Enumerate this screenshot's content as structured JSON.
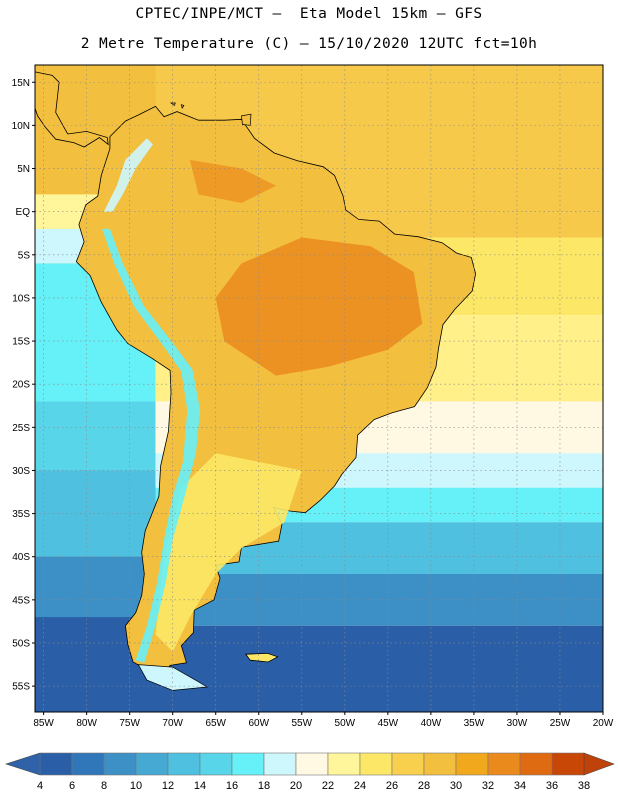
{
  "header": {
    "title_line1": "CPTEC/INPE/MCT –  Eta Model 15km – GFS",
    "title_line2": "2 Metre Temperature (C) – 15/10/2020 12UTC fct=10h"
  },
  "map": {
    "lon_range": [
      -86,
      -20
    ],
    "lat_range": [
      -58,
      17
    ],
    "lat_ticks": [
      {
        "value": 15,
        "label": "15N"
      },
      {
        "value": 10,
        "label": "10N"
      },
      {
        "value": 5,
        "label": "5N"
      },
      {
        "value": 0,
        "label": "EQ"
      },
      {
        "value": -5,
        "label": "5S"
      },
      {
        "value": -10,
        "label": "10S"
      },
      {
        "value": -15,
        "label": "15S"
      },
      {
        "value": -20,
        "label": "20S"
      },
      {
        "value": -25,
        "label": "25S"
      },
      {
        "value": -30,
        "label": "30S"
      },
      {
        "value": -35,
        "label": "35S"
      },
      {
        "value": -40,
        "label": "40S"
      },
      {
        "value": -45,
        "label": "45S"
      },
      {
        "value": -50,
        "label": "50S"
      },
      {
        "value": -55,
        "label": "55S"
      }
    ],
    "lon_ticks": [
      {
        "value": -85,
        "label": "85W"
      },
      {
        "value": -80,
        "label": "80W"
      },
      {
        "value": -75,
        "label": "75W"
      },
      {
        "value": -70,
        "label": "70W"
      },
      {
        "value": -65,
        "label": "65W"
      },
      {
        "value": -60,
        "label": "60W"
      },
      {
        "value": -55,
        "label": "55W"
      },
      {
        "value": -50,
        "label": "50W"
      },
      {
        "value": -45,
        "label": "45W"
      },
      {
        "value": -40,
        "label": "40W"
      },
      {
        "value": -35,
        "label": "35W"
      },
      {
        "value": -30,
        "label": "30W"
      },
      {
        "value": -25,
        "label": "25W"
      },
      {
        "value": -20,
        "label": "20W"
      }
    ]
  },
  "legend": {
    "labels": [
      "4",
      "6",
      "8",
      "10",
      "12",
      "14",
      "16",
      "18",
      "20",
      "22",
      "24",
      "26",
      "28",
      "30",
      "32",
      "34",
      "36",
      "38"
    ],
    "colors": [
      "#2a5fa8",
      "#2f77b8",
      "#3c90c6",
      "#46a9d3",
      "#4fc0df",
      "#58d5e8",
      "#66f0f8",
      "#cdf7fd",
      "#fff8e3",
      "#fff59a",
      "#fce866",
      "#f8d04e",
      "#f3bf3e",
      "#f1a81c",
      "#ea8a1d",
      "#de6a12",
      "#c84606"
    ],
    "low_color": "#2f62a8",
    "high_color": "#c0420b"
  },
  "fields": {
    "ocean_bands": [
      {
        "lat_max": 17,
        "lat_min": -3,
        "color": "#f6c94a"
      },
      {
        "lat_max": -3,
        "lat_min": -12,
        "color": "#fce866"
      },
      {
        "lat_max": -12,
        "lat_min": -22,
        "color": "#fff08a"
      },
      {
        "lat_max": -22,
        "lat_min": -28,
        "color": "#fff8e3"
      },
      {
        "lat_max": -28,
        "lat_min": -32,
        "color": "#cdf7fd"
      },
      {
        "lat_max": -32,
        "lat_min": -36,
        "color": "#66f0f8"
      },
      {
        "lat_max": -36,
        "lat_min": -42,
        "color": "#4fc0df"
      },
      {
        "lat_max": -42,
        "lat_min": -48,
        "color": "#3c90c6"
      },
      {
        "lat_max": -48,
        "lat_min": -58,
        "color": "#2a5fa8"
      }
    ],
    "pacific_bands": [
      {
        "lat_max": 17,
        "lat_min": 2,
        "color": "#f3bf3e"
      },
      {
        "lat_max": 2,
        "lat_min": -2,
        "color": "#fff59a"
      },
      {
        "lat_max": -2,
        "lat_min": -6,
        "color": "#cdf7fd"
      },
      {
        "lat_max": -6,
        "lat_min": -22,
        "color": "#66f0f8"
      },
      {
        "lat_max": -22,
        "lat_min": -30,
        "color": "#58d5e8"
      },
      {
        "lat_max": -30,
        "lat_min": -40,
        "color": "#4fc0df"
      },
      {
        "lat_max": -40,
        "lat_min": -47,
        "color": "#3c90c6"
      },
      {
        "lat_max": -47,
        "lat_min": -58,
        "color": "#2a5fa8"
      }
    ],
    "land_color": "#f3bf3e",
    "hot_color": "#ea8a1d",
    "cold_color": "#66f0f8",
    "cool_color": "#cdf7fd",
    "mild_color": "#fce866"
  }
}
